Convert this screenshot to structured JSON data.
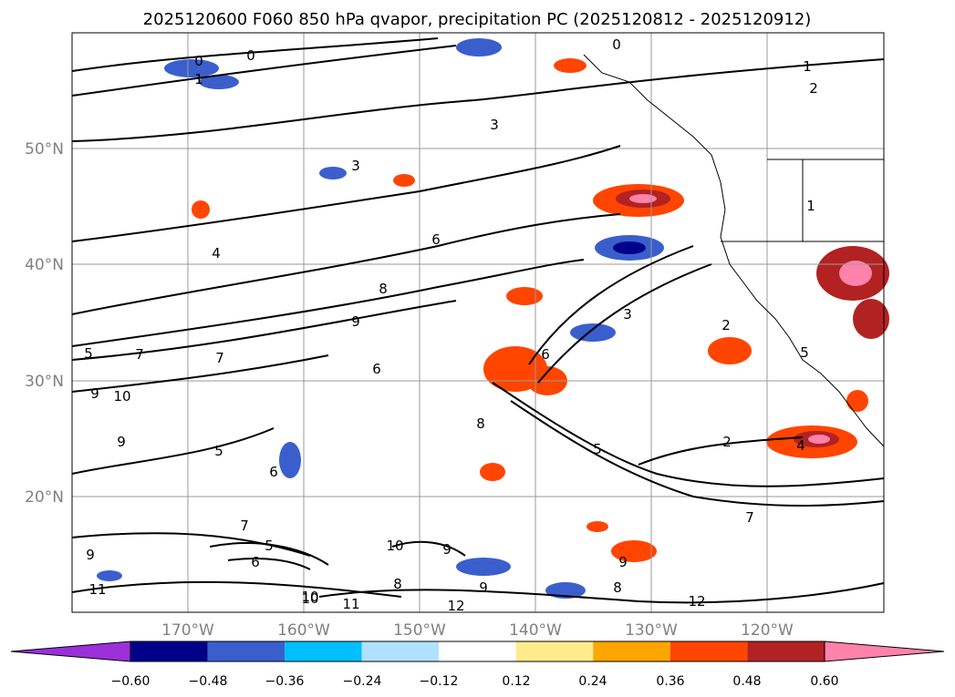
{
  "title": "2025120600 F060 850 hPa qvapor, precipitation PC (2025120812 - 2025120912)",
  "map": {
    "lat_labels": [
      "50°N",
      "40°N",
      "30°N",
      "20°N"
    ],
    "lon_labels": [
      "170°W",
      "160°W",
      "150°W",
      "140°W",
      "130°W",
      "120°W"
    ],
    "contour_labels": [
      "0",
      "0",
      "0",
      "1",
      "1",
      "2",
      "3",
      "3",
      "4",
      "6",
      "8",
      "9",
      "5",
      "7",
      "7",
      "9",
      "10",
      "9",
      "6",
      "6",
      "5",
      "6",
      "8",
      "5",
      "3",
      "2",
      "2",
      "4",
      "9",
      "10",
      "10",
      "9",
      "8",
      "10",
      "11",
      "12",
      "11",
      "12",
      "7",
      "9",
      "5",
      "8",
      "9",
      "7",
      "1",
      "6",
      "5"
    ]
  },
  "colorbar": {
    "ticks": [
      "−0.60",
      "−0.48",
      "−0.36",
      "−0.24",
      "−0.12",
      "0.12",
      "0.24",
      "0.36",
      "0.48",
      "0.60"
    ],
    "colors": [
      "#9b30d9",
      "#00008b",
      "#3a5fcd",
      "#00bfff",
      "#b0e2ff",
      "#ffffff",
      "#ffec8b",
      "#ffa500",
      "#ff4500",
      "#b22222",
      "#ff82ab"
    ]
  }
}
